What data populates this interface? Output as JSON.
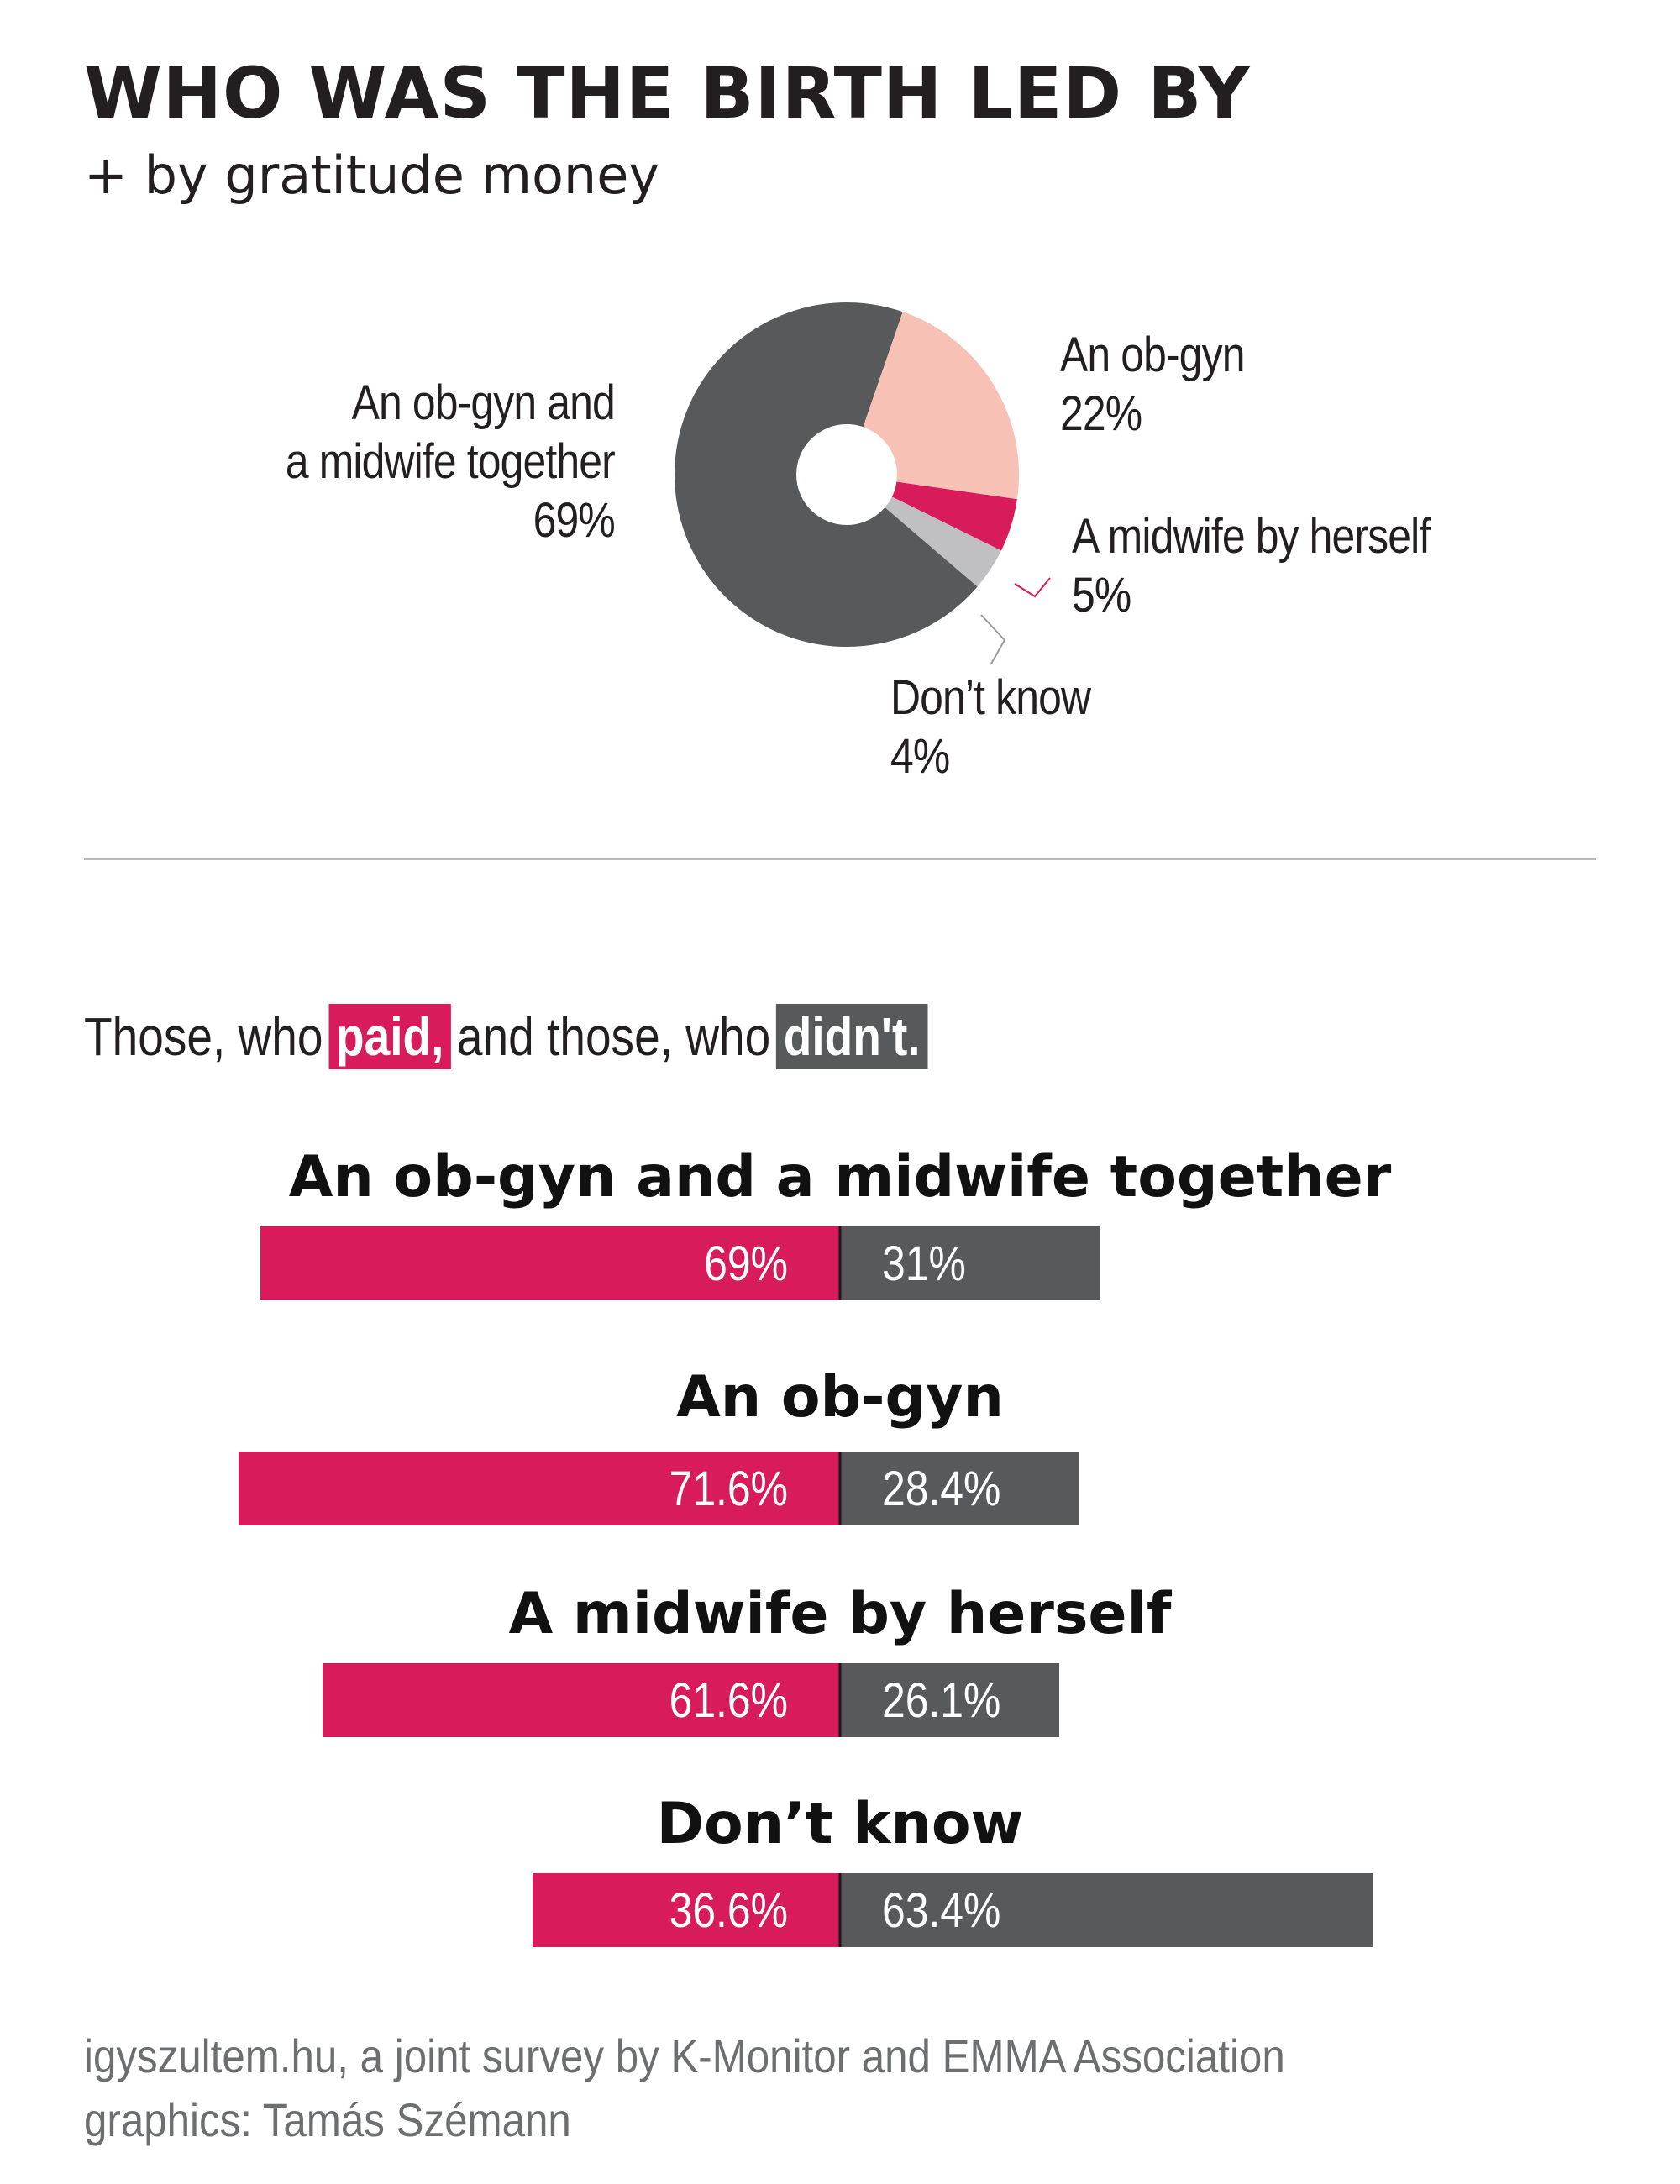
{
  "header": {
    "title": "WHO WAS THE BIRTH LED BY",
    "subtitle": "+ by gratitude money"
  },
  "legend": {
    "prefix": "Those, who",
    "paid": "paid,",
    "middle": "and those, who",
    "didnt": "didn't."
  },
  "source": {
    "line1": "igyszultem.hu, a joint survey by K-Monitor and EMMA Association",
    "line2": "graphics: Tamás Szémann"
  },
  "colors": {
    "paid": "#d81b5a",
    "did_not_pay": "#58595b",
    "together": "#58595b",
    "obgyn": "#f7c1b5",
    "midwife": "#d81b5a",
    "dont_know": "#c0c0c2"
  },
  "chart_data": [
    {
      "type": "pie",
      "title": "WHO WAS THE BIRTH LED BY",
      "subtitle": "+ by gratitude money",
      "donut": true,
      "slices": [
        {
          "label_lines": [
            "An ob-gyn and",
            "a midwife together"
          ],
          "value": 69,
          "value_label": "69%",
          "color": "#58595b"
        },
        {
          "label_lines": [
            "An ob-gyn"
          ],
          "value": 22,
          "value_label": "22%",
          "color": "#f7c1b5"
        },
        {
          "label_lines": [
            "A midwife by herself"
          ],
          "value": 5,
          "value_label": "5%",
          "color": "#d81b5a"
        },
        {
          "label_lines": [
            "Don’t know"
          ],
          "value": 4,
          "value_label": "4%",
          "color": "#c0c0c2"
        }
      ]
    },
    {
      "type": "bar",
      "orientation": "horizontal",
      "stacked": "diverging",
      "series_names": [
        "paid",
        "didn't"
      ],
      "groups": [
        {
          "category": "An ob-gyn and a midwife together",
          "paid": 69,
          "didnt": 31,
          "paid_label": "69%",
          "didnt_label": "31%"
        },
        {
          "category": "An ob-gyn",
          "paid": 71.6,
          "didnt": 28.4,
          "paid_label": "71.6%",
          "didnt_label": "28.4%"
        },
        {
          "category": "A midwife by herself",
          "paid": 61.6,
          "didnt": 26.1,
          "paid_label": "61.6%",
          "didnt_label": "26.1%"
        },
        {
          "category": "Don’t know",
          "paid": 36.6,
          "didnt": 63.4,
          "paid_label": "36.6%",
          "didnt_label": "63.4%"
        }
      ]
    }
  ]
}
